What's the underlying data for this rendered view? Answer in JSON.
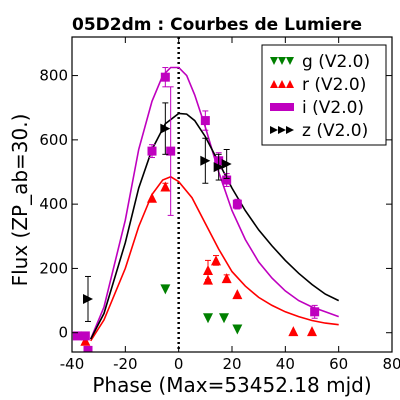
{
  "chart_data": {
    "type": "scatter",
    "title": "05D2dm : Courbes de Lumiere",
    "xlabel": "Phase (Max=53452.18 mjd)",
    "ylabel": "Flux (ZP_ab=30.)",
    "xlim": [
      -40,
      80
    ],
    "ylim": [
      -60,
      920
    ],
    "xticks": [
      -40,
      -20,
      0,
      20,
      40,
      60,
      80
    ],
    "yticks": [
      0,
      200,
      400,
      600,
      800
    ],
    "max_phase_line": 0,
    "legend_position": "top-right",
    "grid": false,
    "series": [
      {
        "name": "g (V2.0)",
        "color": "#008000",
        "marker": "triangle-down",
        "points": [
          {
            "x": -5,
            "y": 135,
            "err": 0
          },
          {
            "x": 11,
            "y": 45,
            "err": 0
          },
          {
            "x": 17,
            "y": 45,
            "err": 0
          },
          {
            "x": 22,
            "y": 10,
            "err": 0
          }
        ],
        "curve": []
      },
      {
        "name": "r (V2.0)",
        "color": "#ff0000",
        "marker": "triangle-up",
        "points": [
          {
            "x": -35,
            "y": -25,
            "err": 0
          },
          {
            "x": -10,
            "y": 420,
            "err": 0
          },
          {
            "x": -5,
            "y": 455,
            "err": 10
          },
          {
            "x": 11,
            "y": 195,
            "err": 30
          },
          {
            "x": 11,
            "y": 165,
            "err": 0
          },
          {
            "x": 14,
            "y": 225,
            "err": 15
          },
          {
            "x": 18,
            "y": 170,
            "err": 10
          },
          {
            "x": 22,
            "y": 120,
            "err": 0
          },
          {
            "x": 43,
            "y": 5,
            "err": 0
          },
          {
            "x": 50,
            "y": 5,
            "err": 0
          }
        ],
        "curve": [
          {
            "x": -33,
            "y": -25
          },
          {
            "x": -28,
            "y": 40
          },
          {
            "x": -20,
            "y": 200
          },
          {
            "x": -15,
            "y": 330
          },
          {
            "x": -10,
            "y": 430
          },
          {
            "x": -6,
            "y": 475
          },
          {
            "x": -3,
            "y": 485
          },
          {
            "x": 0,
            "y": 470
          },
          {
            "x": 5,
            "y": 420
          },
          {
            "x": 10,
            "y": 340
          },
          {
            "x": 15,
            "y": 260
          },
          {
            "x": 20,
            "y": 190
          },
          {
            "x": 25,
            "y": 145
          },
          {
            "x": 30,
            "y": 110
          },
          {
            "x": 35,
            "y": 85
          },
          {
            "x": 40,
            "y": 65
          },
          {
            "x": 45,
            "y": 50
          },
          {
            "x": 50,
            "y": 38
          },
          {
            "x": 55,
            "y": 30
          },
          {
            "x": 60,
            "y": 25
          }
        ]
      },
      {
        "name": "i (V2.0)",
        "color": "#bf00bf",
        "marker": "square",
        "points": [
          {
            "x": -38,
            "y": -10,
            "err": 0
          },
          {
            "x": -35,
            "y": -10,
            "err": 10
          },
          {
            "x": -34,
            "y": -55,
            "err": 0
          },
          {
            "x": -10,
            "y": 565,
            "err": 20
          },
          {
            "x": -5,
            "y": 795,
            "err": 30
          },
          {
            "x": -3,
            "y": 565,
            "err": 200
          },
          {
            "x": 10,
            "y": 660,
            "err": 30
          },
          {
            "x": 15,
            "y": 535,
            "err": 25
          },
          {
            "x": 18,
            "y": 475,
            "err": 20
          },
          {
            "x": 22,
            "y": 400,
            "err": 15
          },
          {
            "x": 51,
            "y": 65,
            "err": 20
          }
        ],
        "curve": [
          {
            "x": -33,
            "y": -20
          },
          {
            "x": -28,
            "y": 80
          },
          {
            "x": -20,
            "y": 350
          },
          {
            "x": -15,
            "y": 570
          },
          {
            "x": -10,
            "y": 720
          },
          {
            "x": -6,
            "y": 800
          },
          {
            "x": -3,
            "y": 825
          },
          {
            "x": 0,
            "y": 825
          },
          {
            "x": 3,
            "y": 800
          },
          {
            "x": 6,
            "y": 740
          },
          {
            "x": 10,
            "y": 640
          },
          {
            "x": 15,
            "y": 500
          },
          {
            "x": 20,
            "y": 380
          },
          {
            "x": 25,
            "y": 290
          },
          {
            "x": 30,
            "y": 220
          },
          {
            "x": 35,
            "y": 170
          },
          {
            "x": 40,
            "y": 130
          },
          {
            "x": 45,
            "y": 100
          },
          {
            "x": 50,
            "y": 80
          },
          {
            "x": 55,
            "y": 65
          },
          {
            "x": 60,
            "y": 50
          }
        ]
      },
      {
        "name": "z (V2.0)",
        "color": "#000000",
        "marker": "triangle-right",
        "points": [
          {
            "x": -34,
            "y": 105,
            "err": 70
          },
          {
            "x": -5,
            "y": 635,
            "err": 80
          },
          {
            "x": 10,
            "y": 535,
            "err": 70
          },
          {
            "x": 15,
            "y": 515,
            "err": 40
          },
          {
            "x": 18,
            "y": 525,
            "err": 45
          }
        ],
        "curve": [
          {
            "x": -33,
            "y": -20
          },
          {
            "x": -28,
            "y": 60
          },
          {
            "x": -20,
            "y": 280
          },
          {
            "x": -15,
            "y": 450
          },
          {
            "x": -10,
            "y": 570
          },
          {
            "x": -5,
            "y": 650
          },
          {
            "x": 0,
            "y": 682
          },
          {
            "x": 3,
            "y": 680
          },
          {
            "x": 6,
            "y": 660
          },
          {
            "x": 10,
            "y": 610
          },
          {
            "x": 15,
            "y": 530
          },
          {
            "x": 20,
            "y": 450
          },
          {
            "x": 25,
            "y": 380
          },
          {
            "x": 30,
            "y": 320
          },
          {
            "x": 35,
            "y": 270
          },
          {
            "x": 40,
            "y": 225
          },
          {
            "x": 45,
            "y": 185
          },
          {
            "x": 50,
            "y": 150
          },
          {
            "x": 55,
            "y": 120
          },
          {
            "x": 60,
            "y": 100
          }
        ]
      }
    ]
  }
}
